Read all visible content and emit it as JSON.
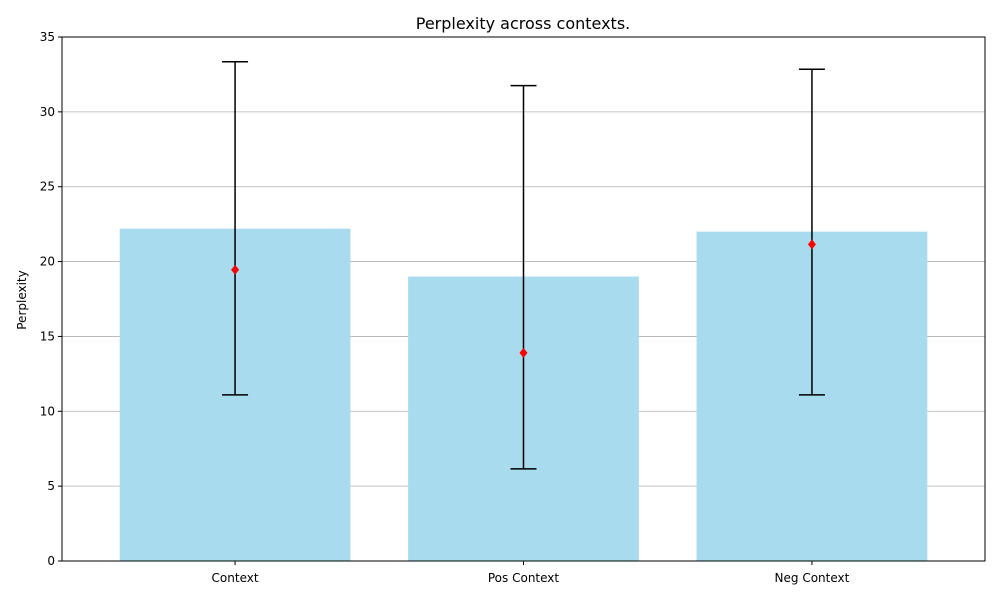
{
  "chart_data": {
    "type": "bar",
    "title": "Perplexity across contexts.",
    "xlabel": "",
    "ylabel": "Perplexity",
    "categories": [
      "Context",
      "Pos Context",
      "Neg Context"
    ],
    "values": [
      22.2,
      19.0,
      22.0
    ],
    "markers": [
      19.45,
      13.9,
      21.15
    ],
    "error_low": [
      11.1,
      6.15,
      11.1
    ],
    "error_high": [
      33.35,
      31.75,
      32.85
    ],
    "ylim": [
      0,
      35
    ],
    "yticks": [
      0,
      5,
      10,
      15,
      20,
      25,
      30,
      35
    ],
    "grid": "y",
    "colors": {
      "bar": "#a8dbed",
      "marker": "#ff0000",
      "errorbar": "#000000",
      "grid": "#b0b0b0"
    }
  }
}
